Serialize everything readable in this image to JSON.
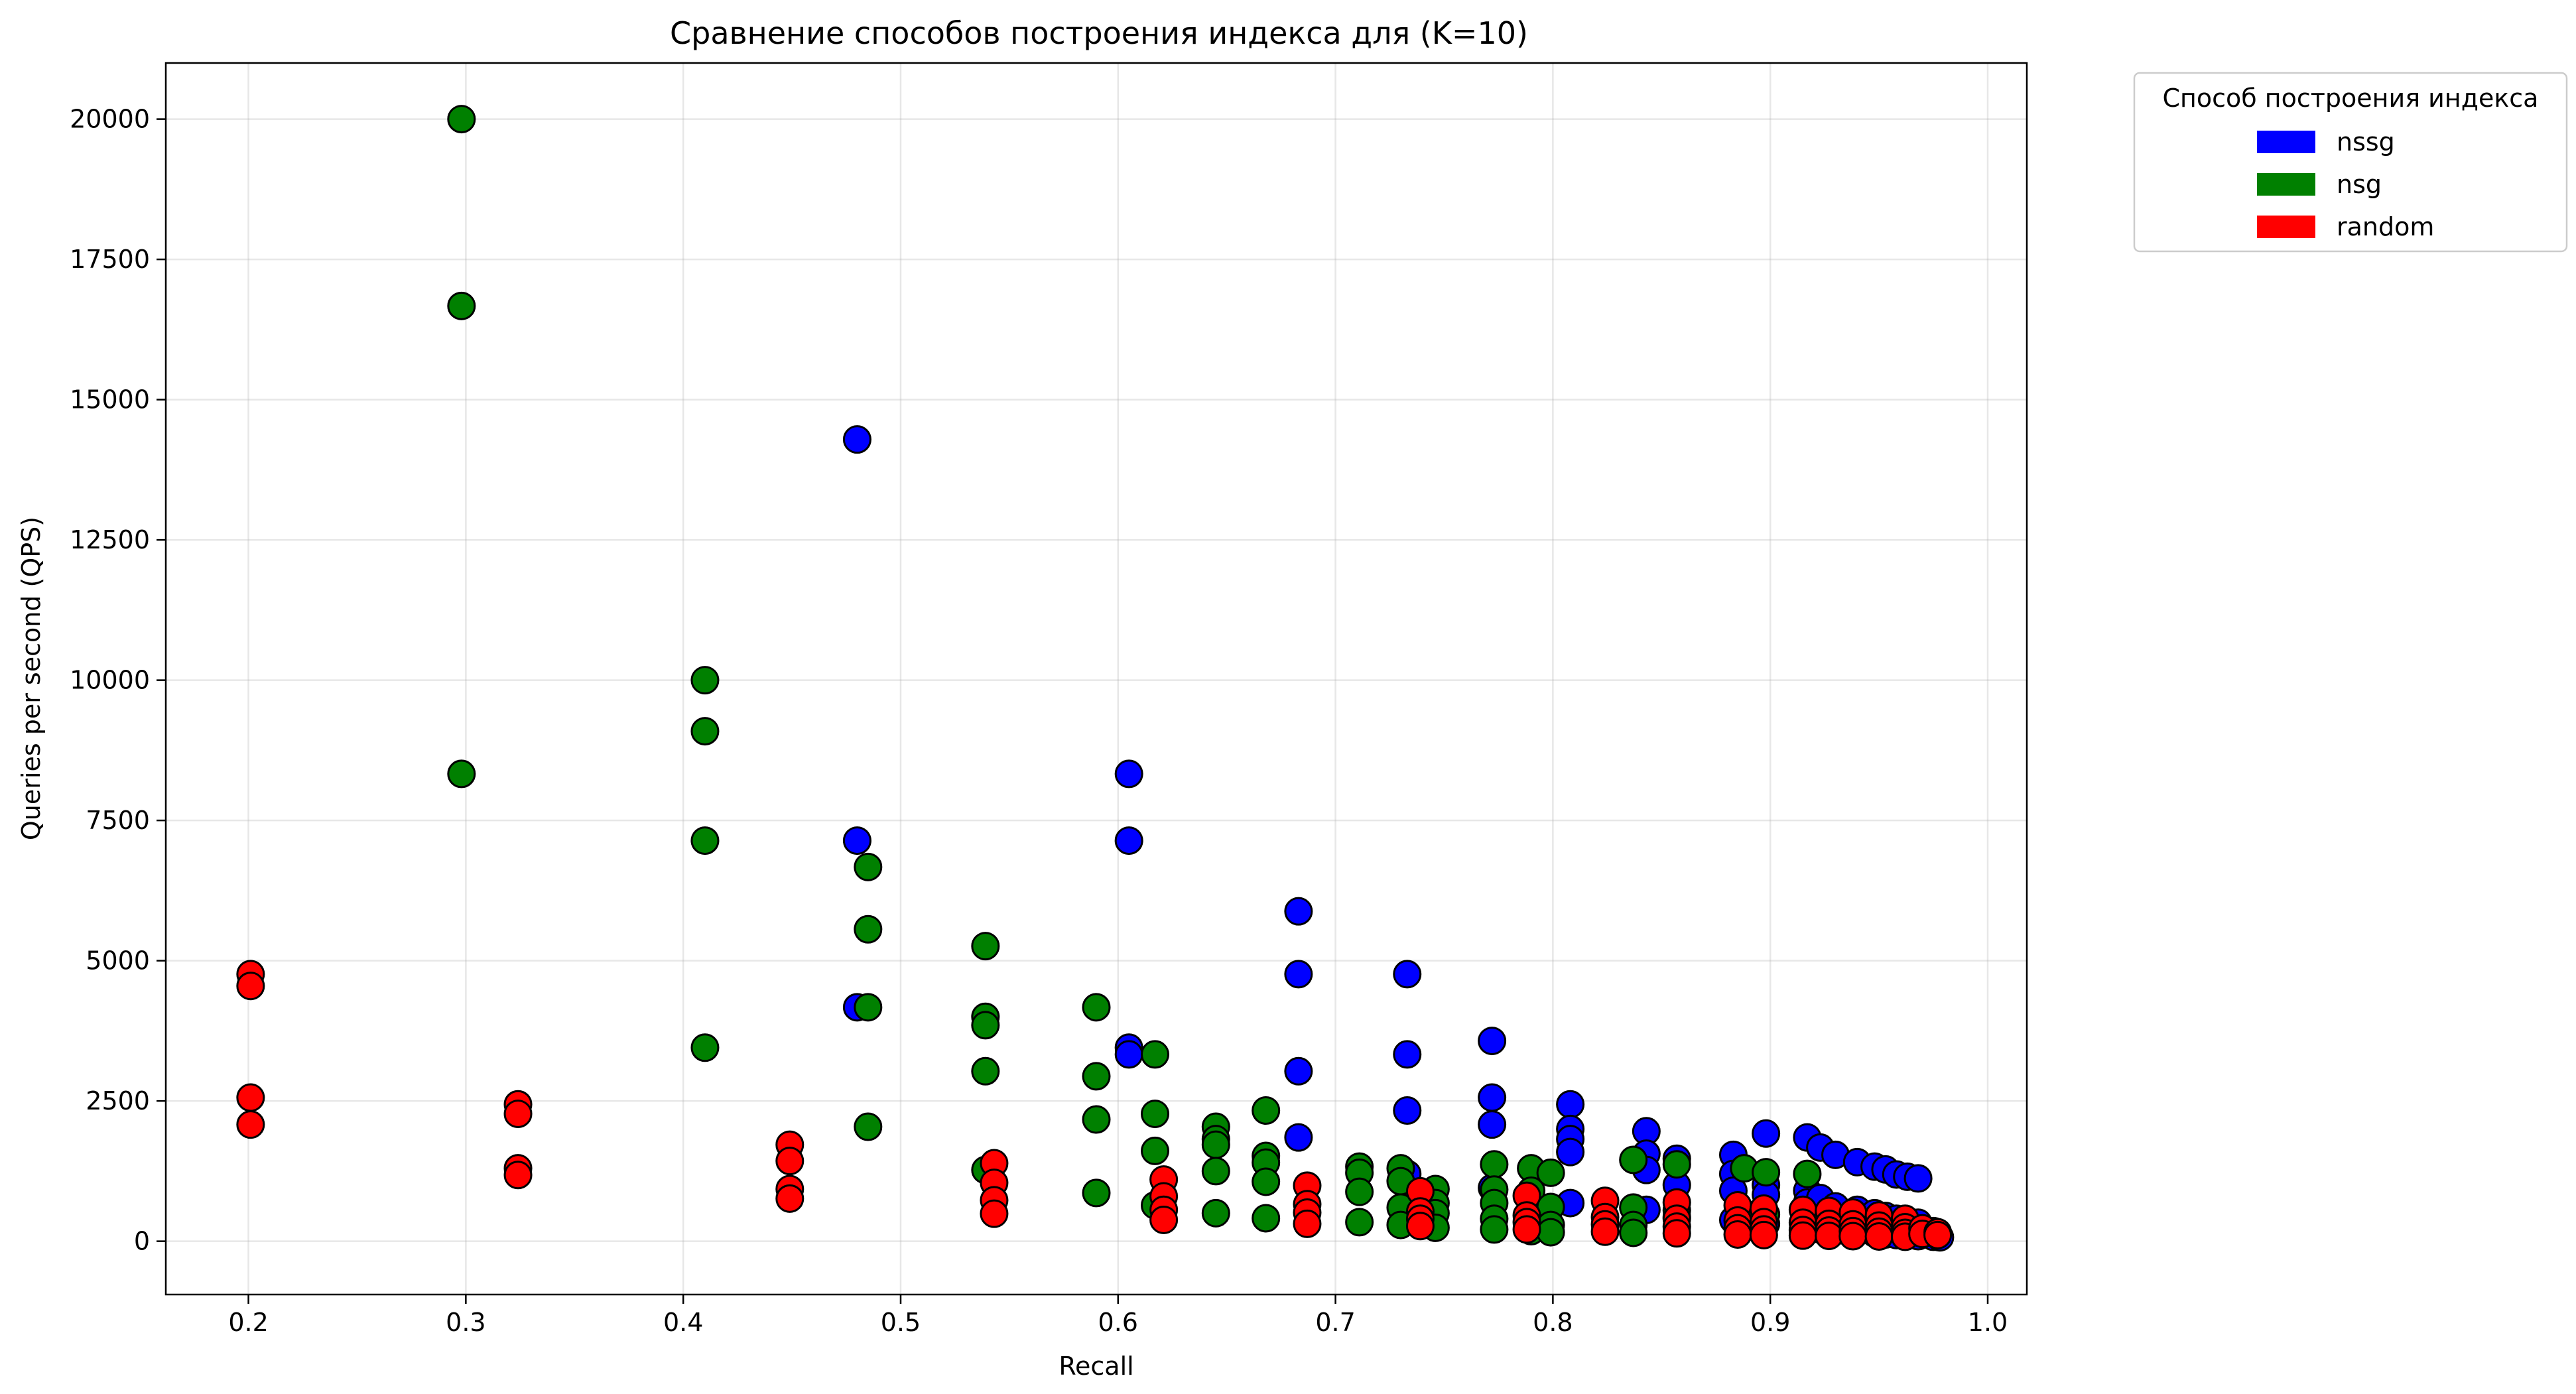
{
  "chart_data": {
    "type": "scatter",
    "title": "Сравнение способов построения индекса для (K=10)",
    "xlabel": "Recall",
    "ylabel": "Queries per second (QPS)",
    "xlim": [
      0.162,
      1.018
    ],
    "ylim": [
      -950,
      21000
    ],
    "xticks": [
      0.2,
      0.3,
      0.4,
      0.5,
      0.6,
      0.7,
      0.8,
      0.9,
      1.0
    ],
    "xtick_labels": [
      "0.2",
      "0.3",
      "0.4",
      "0.5",
      "0.6",
      "0.7",
      "0.8",
      "0.9",
      "1.0"
    ],
    "yticks": [
      0,
      2500,
      5000,
      7500,
      10000,
      12500,
      15000,
      17500,
      20000
    ],
    "ytick_labels": [
      "0",
      "2500",
      "5000",
      "7500",
      "10000",
      "12500",
      "15000",
      "17500",
      "20000"
    ],
    "grid": true,
    "legend": {
      "title": "Способ построения индекса",
      "placement": "outside-top-right"
    },
    "series": [
      {
        "name": "nssg",
        "color": "#0000ff",
        "points": [
          [
            0.48,
            14290
          ],
          [
            0.48,
            7140
          ],
          [
            0.48,
            4170
          ],
          [
            0.605,
            8330
          ],
          [
            0.605,
            7140
          ],
          [
            0.605,
            3450
          ],
          [
            0.605,
            3330
          ],
          [
            0.683,
            5880
          ],
          [
            0.683,
            4760
          ],
          [
            0.683,
            3030
          ],
          [
            0.683,
            1850
          ],
          [
            0.733,
            4760
          ],
          [
            0.733,
            3330
          ],
          [
            0.733,
            2330
          ],
          [
            0.733,
            1200
          ],
          [
            0.772,
            3570
          ],
          [
            0.772,
            2560
          ],
          [
            0.772,
            2080
          ],
          [
            0.772,
            950
          ],
          [
            0.808,
            2440
          ],
          [
            0.808,
            2000
          ],
          [
            0.808,
            1820
          ],
          [
            0.808,
            1590
          ],
          [
            0.808,
            680
          ],
          [
            0.843,
            1960
          ],
          [
            0.843,
            1560
          ],
          [
            0.843,
            1270
          ],
          [
            0.843,
            560
          ],
          [
            0.857,
            1470
          ],
          [
            0.857,
            1000
          ],
          [
            0.857,
            430
          ],
          [
            0.883,
            1540
          ],
          [
            0.883,
            1200
          ],
          [
            0.883,
            900
          ],
          [
            0.883,
            380
          ],
          [
            0.898,
            1920
          ],
          [
            0.898,
            1000
          ],
          [
            0.898,
            830
          ],
          [
            0.898,
            310
          ],
          [
            0.917,
            1850
          ],
          [
            0.917,
            900
          ],
          [
            0.917,
            690
          ],
          [
            0.917,
            250
          ],
          [
            0.923,
            1670
          ],
          [
            0.923,
            770
          ],
          [
            0.923,
            210
          ],
          [
            0.93,
            1540
          ],
          [
            0.93,
            620
          ],
          [
            0.93,
            180
          ],
          [
            0.94,
            1410
          ],
          [
            0.94,
            560
          ],
          [
            0.94,
            160
          ],
          [
            0.948,
            1330
          ],
          [
            0.948,
            500
          ],
          [
            0.948,
            140
          ],
          [
            0.953,
            1280
          ],
          [
            0.953,
            450
          ],
          [
            0.953,
            120
          ],
          [
            0.958,
            1190
          ],
          [
            0.958,
            400
          ],
          [
            0.958,
            110
          ],
          [
            0.963,
            1150
          ],
          [
            0.963,
            360
          ],
          [
            0.963,
            100
          ],
          [
            0.968,
            1120
          ],
          [
            0.968,
            330
          ],
          [
            0.968,
            90
          ],
          [
            0.975,
            180
          ],
          [
            0.975,
            80
          ],
          [
            0.978,
            70
          ]
        ]
      },
      {
        "name": "nsg",
        "color": "#008000",
        "points": [
          [
            0.298,
            20000
          ],
          [
            0.298,
            16670
          ],
          [
            0.298,
            8330
          ],
          [
            0.41,
            10000
          ],
          [
            0.41,
            9090
          ],
          [
            0.41,
            7140
          ],
          [
            0.41,
            3450
          ],
          [
            0.485,
            6670
          ],
          [
            0.485,
            5560
          ],
          [
            0.485,
            4170
          ],
          [
            0.485,
            2040
          ],
          [
            0.539,
            5260
          ],
          [
            0.539,
            4000
          ],
          [
            0.539,
            3850
          ],
          [
            0.539,
            3030
          ],
          [
            0.539,
            1270
          ],
          [
            0.59,
            4170
          ],
          [
            0.59,
            2940
          ],
          [
            0.59,
            2170
          ],
          [
            0.59,
            860
          ],
          [
            0.617,
            3330
          ],
          [
            0.617,
            2270
          ],
          [
            0.617,
            1610
          ],
          [
            0.617,
            640
          ],
          [
            0.645,
            2040
          ],
          [
            0.645,
            1820
          ],
          [
            0.645,
            1720
          ],
          [
            0.645,
            1250
          ],
          [
            0.645,
            500
          ],
          [
            0.668,
            2330
          ],
          [
            0.668,
            1520
          ],
          [
            0.668,
            1400
          ],
          [
            0.668,
            1060
          ],
          [
            0.668,
            410
          ],
          [
            0.711,
            1330
          ],
          [
            0.711,
            1220
          ],
          [
            0.711,
            880
          ],
          [
            0.711,
            340
          ],
          [
            0.73,
            1300
          ],
          [
            0.73,
            1070
          ],
          [
            0.73,
            600
          ],
          [
            0.73,
            290
          ],
          [
            0.746,
            930
          ],
          [
            0.746,
            680
          ],
          [
            0.746,
            500
          ],
          [
            0.746,
            240
          ],
          [
            0.773,
            1370
          ],
          [
            0.773,
            920
          ],
          [
            0.773,
            680
          ],
          [
            0.773,
            400
          ],
          [
            0.773,
            210
          ],
          [
            0.79,
            1300
          ],
          [
            0.79,
            900
          ],
          [
            0.79,
            600
          ],
          [
            0.79,
            350
          ],
          [
            0.79,
            180
          ],
          [
            0.799,
            1220
          ],
          [
            0.799,
            610
          ],
          [
            0.799,
            290
          ],
          [
            0.799,
            160
          ],
          [
            0.837,
            1450
          ],
          [
            0.837,
            600
          ],
          [
            0.837,
            290
          ],
          [
            0.837,
            150
          ],
          [
            0.857,
            1370
          ],
          [
            0.857,
            550
          ],
          [
            0.888,
            1300
          ],
          [
            0.888,
            500
          ],
          [
            0.898,
            1230
          ],
          [
            0.898,
            480
          ],
          [
            0.917,
            1200
          ],
          [
            0.917,
            460
          ]
        ]
      },
      {
        "name": "random",
        "color": "#ff0000",
        "points": [
          [
            0.201,
            4760
          ],
          [
            0.201,
            4550
          ],
          [
            0.201,
            2560
          ],
          [
            0.201,
            2080
          ],
          [
            0.324,
            2440
          ],
          [
            0.324,
            2270
          ],
          [
            0.324,
            1300
          ],
          [
            0.324,
            1180
          ],
          [
            0.449,
            1720
          ],
          [
            0.449,
            1430
          ],
          [
            0.449,
            930
          ],
          [
            0.449,
            760
          ],
          [
            0.543,
            1390
          ],
          [
            0.543,
            1040
          ],
          [
            0.543,
            730
          ],
          [
            0.543,
            490
          ],
          [
            0.621,
            1100
          ],
          [
            0.621,
            800
          ],
          [
            0.621,
            560
          ],
          [
            0.621,
            380
          ],
          [
            0.687,
            990
          ],
          [
            0.687,
            660
          ],
          [
            0.687,
            510
          ],
          [
            0.687,
            310
          ],
          [
            0.739,
            890
          ],
          [
            0.739,
            530
          ],
          [
            0.739,
            400
          ],
          [
            0.739,
            270
          ],
          [
            0.788,
            810
          ],
          [
            0.788,
            460
          ],
          [
            0.788,
            340
          ],
          [
            0.788,
            210
          ],
          [
            0.824,
            720
          ],
          [
            0.824,
            430
          ],
          [
            0.824,
            300
          ],
          [
            0.824,
            170
          ],
          [
            0.857,
            690
          ],
          [
            0.857,
            400
          ],
          [
            0.857,
            260
          ],
          [
            0.857,
            140
          ],
          [
            0.885,
            640
          ],
          [
            0.885,
            370
          ],
          [
            0.885,
            230
          ],
          [
            0.885,
            120
          ],
          [
            0.897,
            580
          ],
          [
            0.897,
            340
          ],
          [
            0.897,
            210
          ],
          [
            0.897,
            110
          ],
          [
            0.915,
            560
          ],
          [
            0.915,
            330
          ],
          [
            0.915,
            200
          ],
          [
            0.915,
            100
          ],
          [
            0.927,
            540
          ],
          [
            0.927,
            310
          ],
          [
            0.927,
            190
          ],
          [
            0.927,
            95
          ],
          [
            0.938,
            510
          ],
          [
            0.938,
            300
          ],
          [
            0.938,
            180
          ],
          [
            0.938,
            90
          ],
          [
            0.95,
            460
          ],
          [
            0.95,
            280
          ],
          [
            0.95,
            170
          ],
          [
            0.95,
            85
          ],
          [
            0.962,
            400
          ],
          [
            0.962,
            250
          ],
          [
            0.962,
            150
          ],
          [
            0.962,
            80
          ],
          [
            0.97,
            230
          ],
          [
            0.97,
            130
          ],
          [
            0.977,
            160
          ],
          [
            0.977,
            110
          ]
        ]
      }
    ]
  }
}
